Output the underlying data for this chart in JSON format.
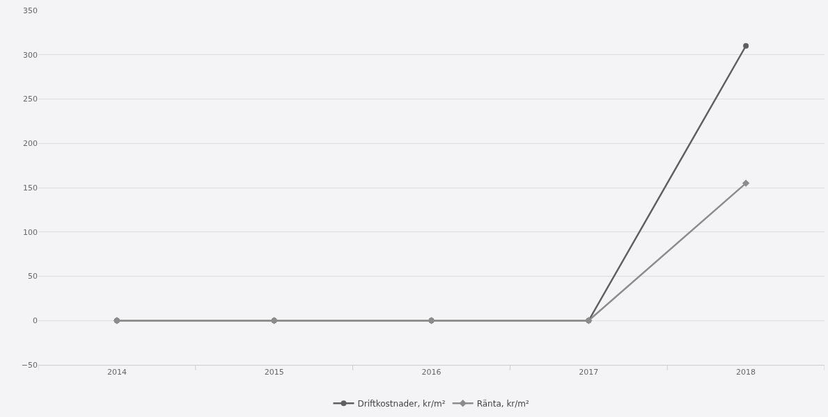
{
  "chart_data": {
    "type": "line",
    "categories": [
      "2014",
      "2015",
      "2016",
      "2017",
      "2018"
    ],
    "series": [
      {
        "name": "Driftkostnader, kr/m²",
        "color": "#5f5f5f",
        "marker": "circle",
        "values": [
          0,
          0,
          0,
          0,
          310
        ]
      },
      {
        "name": "Ränta, kr/m²",
        "color": "#8c8c8c",
        "marker": "diamond",
        "values": [
          0,
          0,
          0,
          0,
          155
        ]
      }
    ],
    "ylim": [
      -50,
      350
    ],
    "yticks": [
      -50,
      0,
      50,
      100,
      150,
      200,
      250,
      300,
      350
    ],
    "grid": "y",
    "legend": "bottom",
    "line_style": "solid"
  }
}
